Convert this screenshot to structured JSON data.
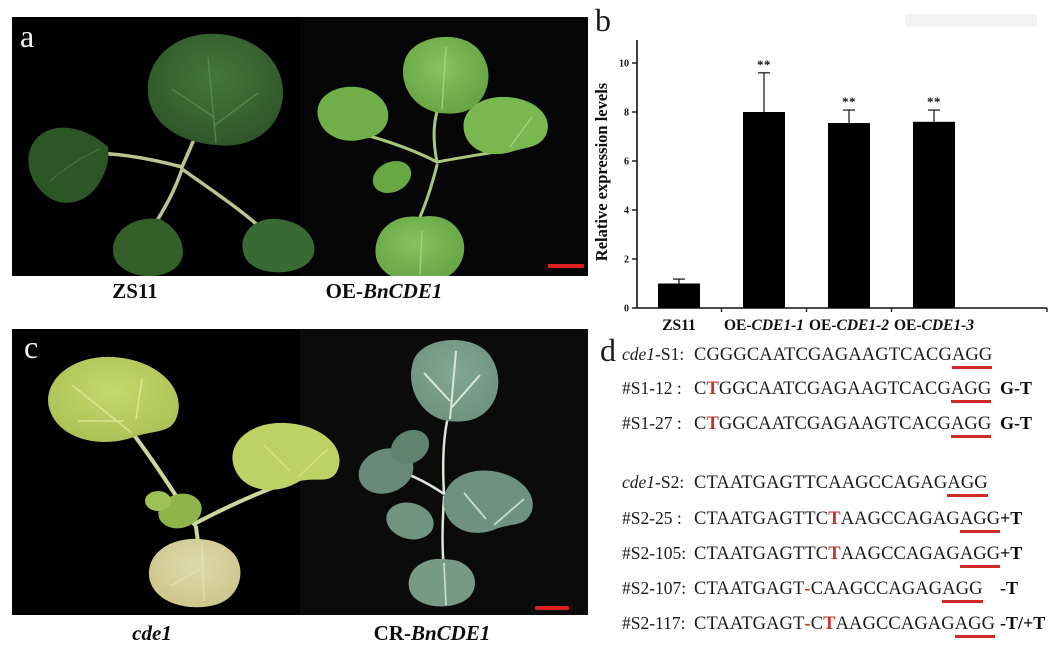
{
  "panel_a": {
    "letter": "a",
    "label_left": {
      "plain": "ZS11",
      "italic": ""
    },
    "label_right": {
      "plain": "OE-",
      "italic": "BnCDE1"
    },
    "scalebar_color": "#dd1f1f"
  },
  "panel_b": {
    "letter": "b"
  },
  "chart_data": {
    "type": "bar",
    "categories": [
      "ZS11",
      "OE-CDE1-1",
      "OE-CDE1-2",
      "OE-CDE1-3"
    ],
    "values": [
      1.0,
      8.0,
      7.55,
      7.6
    ],
    "errors": [
      0.18,
      1.6,
      0.53,
      0.48
    ],
    "significance": [
      "",
      "**",
      "**",
      "**"
    ],
    "title": "",
    "xlabel": "",
    "ylabel": "Relative expression levels",
    "yticks": [
      0,
      2,
      4,
      6,
      8,
      10
    ],
    "ylim": [
      0,
      10.9
    ],
    "grid": false,
    "legend": "none",
    "bar_color": "#000000"
  },
  "panel_c": {
    "letter": "c",
    "label_left": {
      "plain": "",
      "italic": "cde1"
    },
    "label_right": {
      "plain": "CR-",
      "italic": "BnCDE1"
    },
    "scalebar_color": "#dd1f1f"
  },
  "panel_d": {
    "letter": "d",
    "accent_red": "#c5352c",
    "underline_red": "#cf2b24",
    "lines": [
      {
        "prefix_italic": "cde1",
        "prefix": "-S1: ",
        "segments": [
          {
            "t": "CGGGCAATCGAGAAGTCACG"
          },
          {
            "t": "AGG",
            "u": 1
          }
        ],
        "suffix": ""
      },
      {
        "prefix": "#S1-12 : ",
        "segments": [
          {
            "t": "C"
          },
          {
            "t": "T",
            "r": 1
          },
          {
            "t": "GGCAATCGAGAAGTCACG"
          },
          {
            "t": "AGG",
            "u": 1
          }
        ],
        "suffix": "G-T"
      },
      {
        "prefix": "#S1-27 : ",
        "segments": [
          {
            "t": "C"
          },
          {
            "t": "T",
            "r": 1
          },
          {
            "t": "GGCAATCGAGAAGTCACG"
          },
          {
            "t": "AGG",
            "u": 1
          }
        ],
        "suffix": "G-T"
      },
      {
        "prefix_italic": "cde1",
        "prefix": "-S2: ",
        "segments": [
          {
            "t": "CTAATGAGTTCAAGCCAGAG"
          },
          {
            "t": "AGG",
            "u": 1
          }
        ],
        "suffix": ""
      },
      {
        "prefix": "#S2-25 : ",
        "segments": [
          {
            "t": "CTAATGAGTTC"
          },
          {
            "t": "T",
            "r": 1
          },
          {
            "t": "AAGCCAGAG"
          },
          {
            "t": "AGG",
            "u": 1
          }
        ],
        "suffix": "+T"
      },
      {
        "prefix": "#S2-105: ",
        "segments": [
          {
            "t": "CTAATGAGTTC"
          },
          {
            "t": "T",
            "r": 1
          },
          {
            "t": "AAGCCAGAG"
          },
          {
            "t": "AGG",
            "u": 1
          }
        ],
        "suffix": "+T"
      },
      {
        "prefix": "#S2-107: ",
        "segments": [
          {
            "t": "CTAATGAGT"
          },
          {
            "t": "-",
            "r": 1
          },
          {
            "t": "CAAGCCAGAG"
          },
          {
            "t": "AGG",
            "u": 1
          }
        ],
        "suffix": "-T"
      },
      {
        "prefix": "#S2-117: ",
        "segments": [
          {
            "t": "CTAATGAGT"
          },
          {
            "t": "-",
            "r": 1
          },
          {
            "t": "C"
          },
          {
            "t": "T",
            "r": 1
          },
          {
            "t": "AAGCCAGAG"
          },
          {
            "t": "AGG",
            "u": 1
          }
        ],
        "suffix": "-T/+T"
      }
    ]
  }
}
